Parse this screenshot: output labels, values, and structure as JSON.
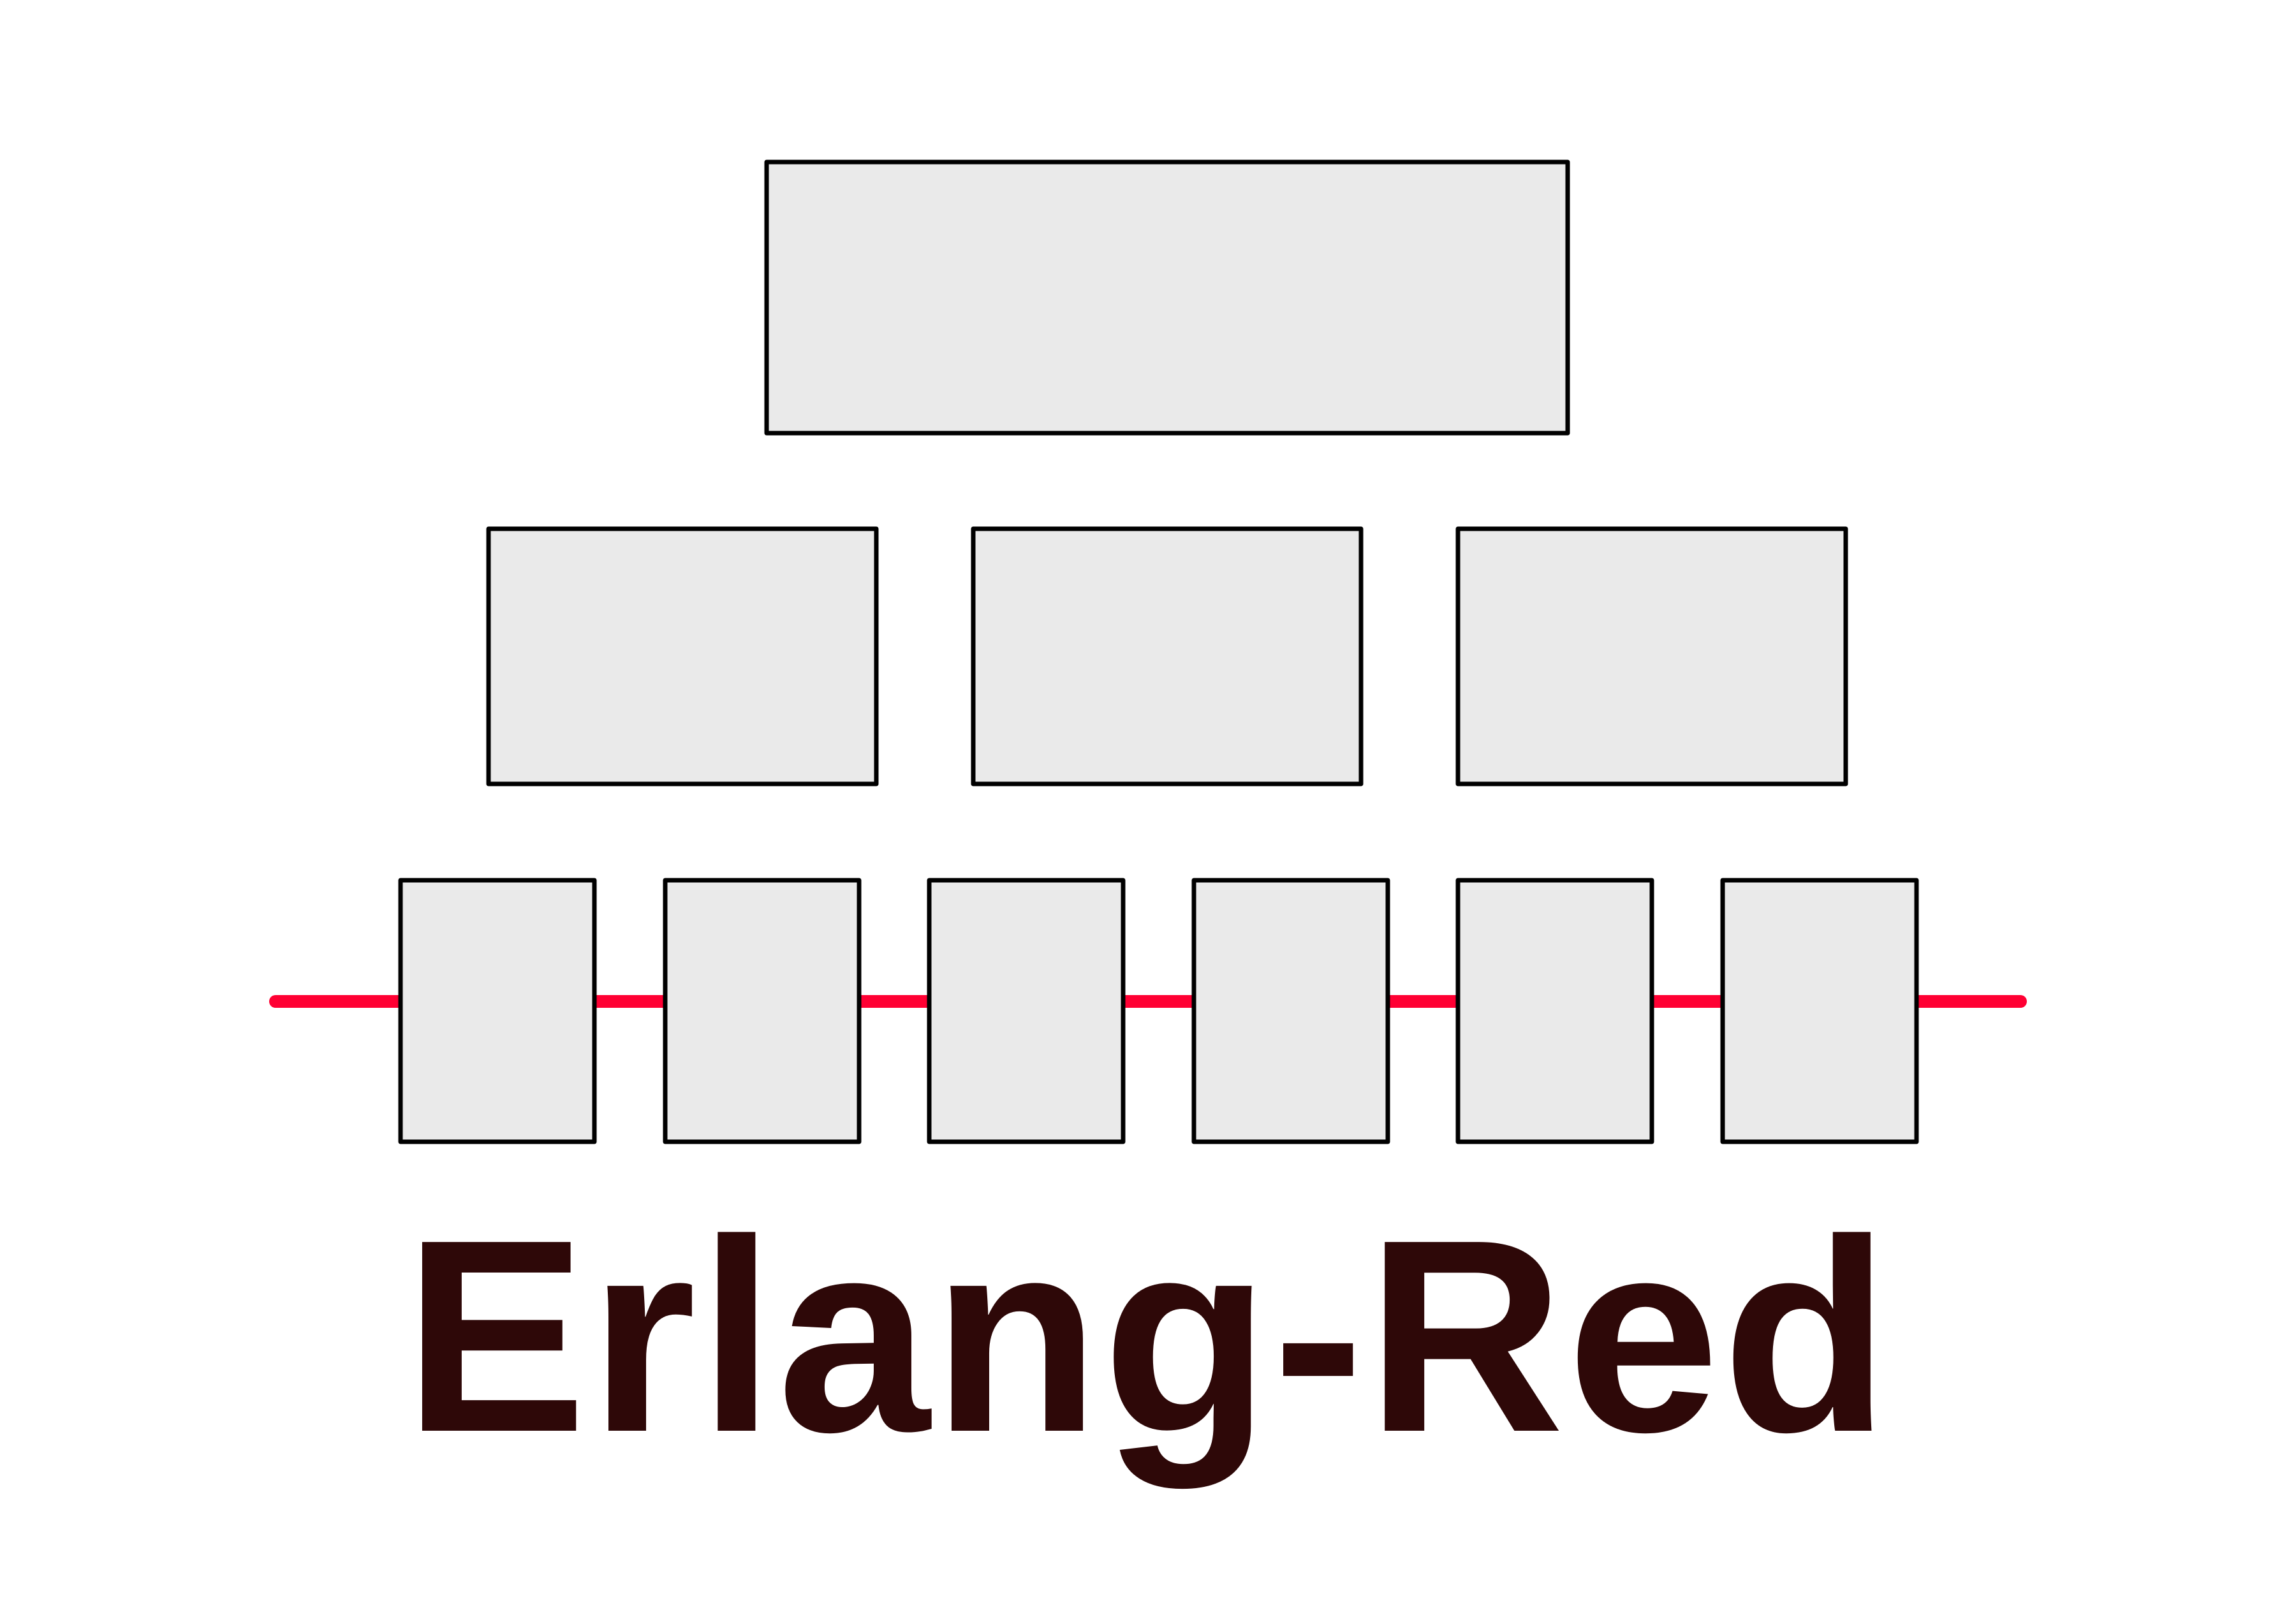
{
  "logo": {
    "title": "Erlang-Red",
    "colors": {
      "box_fill": "#eaeaea",
      "box_stroke": "#000000",
      "wire": "#ff0033",
      "title": "#2e0808",
      "background": "#ffffff"
    },
    "rows": [
      {
        "name": "top-row",
        "box_count": 1
      },
      {
        "name": "middle-row",
        "box_count": 3
      },
      {
        "name": "bottom-row",
        "box_count": 6,
        "on_wire": true
      }
    ]
  }
}
